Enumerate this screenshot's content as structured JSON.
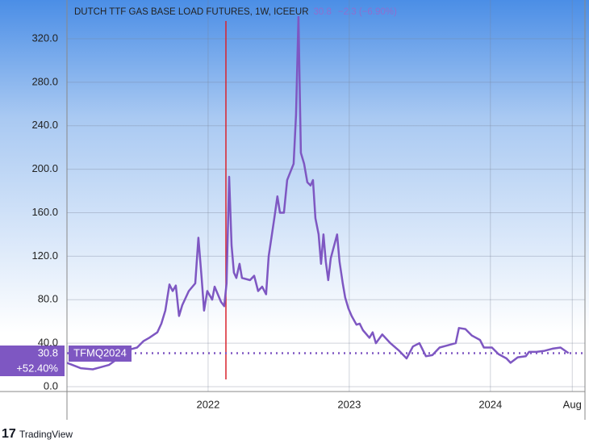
{
  "chart_data": {
    "type": "line",
    "title": "DUTCH TTF GAS BASE LOAD FUTURES, 1W, ICEEUR",
    "last_price": 30.8,
    "change": "−2.3 (−6.90%)",
    "change_since": "+52.40%",
    "symbol": "TFMQ2024",
    "brand": "TradingView",
    "x": [
      2021.0,
      2021.097,
      2021.183,
      2021.24,
      2021.297,
      2021.383,
      2021.44,
      2021.497,
      2021.543,
      2021.583,
      2021.64,
      2021.669,
      2021.697,
      2021.726,
      2021.749,
      2021.771,
      2021.794,
      2021.817,
      2021.863,
      2021.909,
      2021.931,
      2021.954,
      2021.971,
      2021.994,
      2022.029,
      2022.046,
      2022.091,
      2022.114,
      2022.131,
      2022.149,
      2022.166,
      2022.183,
      2022.2,
      2022.223,
      2022.24,
      2022.297,
      2022.326,
      2022.354,
      2022.383,
      2022.411,
      2022.429,
      2022.469,
      2022.491,
      2022.509,
      2022.537,
      2022.56,
      2022.606,
      2022.623,
      2022.64,
      2022.657,
      2022.68,
      2022.703,
      2022.726,
      2022.743,
      2022.76,
      2022.783,
      2022.8,
      2022.817,
      2022.834,
      2022.851,
      2022.869,
      2022.914,
      2022.931,
      2022.954,
      2022.971,
      2022.994,
      2023.017,
      2023.051,
      2023.074,
      2023.097,
      2023.143,
      2023.166,
      2023.189,
      2023.234,
      2023.291,
      2023.354,
      2023.406,
      2023.451,
      2023.497,
      2023.543,
      2023.589,
      2023.64,
      2023.697,
      2023.754,
      2023.777,
      2023.823,
      2023.869,
      2023.926,
      2023.954,
      2024.011,
      2024.057,
      2024.114,
      2024.143,
      2024.194,
      2024.251,
      2024.274,
      2024.326,
      2024.383,
      2024.44,
      2024.497,
      2024.554
    ],
    "series": [
      {
        "name": "TFMQ2024",
        "color": "#7e57c2",
        "values": [
          22,
          17,
          16,
          18,
          20,
          28,
          34,
          36,
          42,
          45,
          50,
          58,
          70,
          94,
          88,
          93,
          65,
          75,
          88,
          95,
          137,
          100,
          70,
          88,
          80,
          92,
          78,
          74,
          95,
          193,
          130,
          105,
          100,
          113,
          100,
          98,
          102,
          88,
          92,
          85,
          120,
          155,
          175,
          160,
          160,
          190,
          205,
          250,
          340,
          215,
          205,
          188,
          185,
          190,
          155,
          140,
          113,
          140,
          115,
          98,
          118,
          140,
          115,
          95,
          82,
          72,
          65,
          57,
          58,
          52,
          45,
          50,
          40,
          48,
          40,
          33,
          26,
          37,
          40,
          28,
          29,
          36,
          38,
          40,
          54,
          53,
          47,
          43,
          36,
          36,
          30,
          26,
          22,
          27,
          28,
          32,
          32,
          33,
          35,
          36,
          30.8
        ]
      }
    ],
    "xlim": [
      2021.0,
      2024.67
    ],
    "xticks": [
      2022,
      2023,
      2024,
      {
        "value": 2024.58,
        "label": "Aug"
      }
    ],
    "ylim": [
      -4.45,
      355.6
    ],
    "yticks": [
      {
        "value": 0,
        "label": "0.0"
      },
      {
        "value": 40,
        "label": "40.0"
      },
      {
        "value": 80,
        "label": "80.0"
      },
      {
        "value": 120,
        "label": "120.0"
      },
      {
        "value": 160,
        "label": "160.0"
      },
      {
        "value": 200,
        "label": "200.0"
      },
      {
        "value": 240,
        "label": "240.0"
      },
      {
        "value": 280,
        "label": "280.0"
      },
      {
        "value": 320,
        "label": "320.0"
      }
    ],
    "grid": true
  }
}
